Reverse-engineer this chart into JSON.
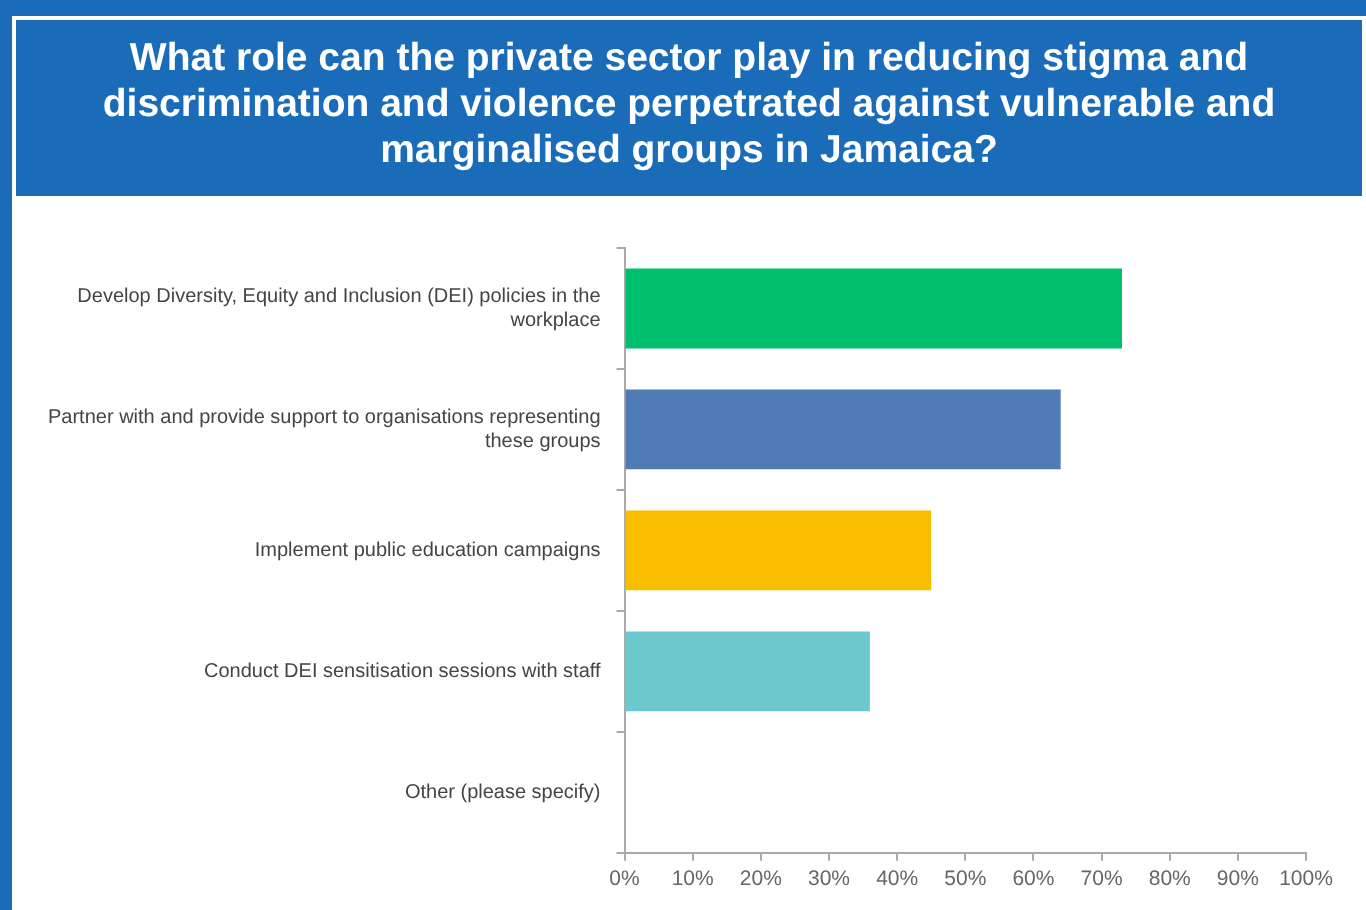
{
  "chart_data": {
    "type": "bar",
    "orientation": "horizontal",
    "title": "What role can the private sector play in reducing stigma and discrimination and violence perpetrated against vulnerable and marginalised groups in Jamaica?",
    "categories": [
      "Develop Diversity, Equity and Inclusion (DEI) policies in the workplace",
      "Partner with and provide support to organisations representing these groups",
      "Implement public education campaigns",
      "Conduct DEI sensitisation sessions with staff",
      "Other (please specify)"
    ],
    "values": [
      73,
      64,
      45,
      36,
      0
    ],
    "colors": [
      "#00bf6f",
      "#4f7bb7",
      "#f9be00",
      "#6bc8cd",
      "#b5b5b5"
    ],
    "xlim": [
      0,
      100
    ],
    "xticks": [
      {
        "value": 0,
        "label": "0%"
      },
      {
        "value": 10,
        "label": "10%"
      },
      {
        "value": 20,
        "label": "20%"
      },
      {
        "value": 30,
        "label": "30%"
      },
      {
        "value": 40,
        "label": "40%"
      },
      {
        "value": 50,
        "label": "50%"
      },
      {
        "value": 60,
        "label": "60%"
      },
      {
        "value": 70,
        "label": "70%"
      },
      {
        "value": 80,
        "label": "80%"
      },
      {
        "value": 90,
        "label": "90%"
      },
      {
        "value": 100,
        "label": "100%"
      }
    ],
    "grid": false,
    "legend": false
  }
}
